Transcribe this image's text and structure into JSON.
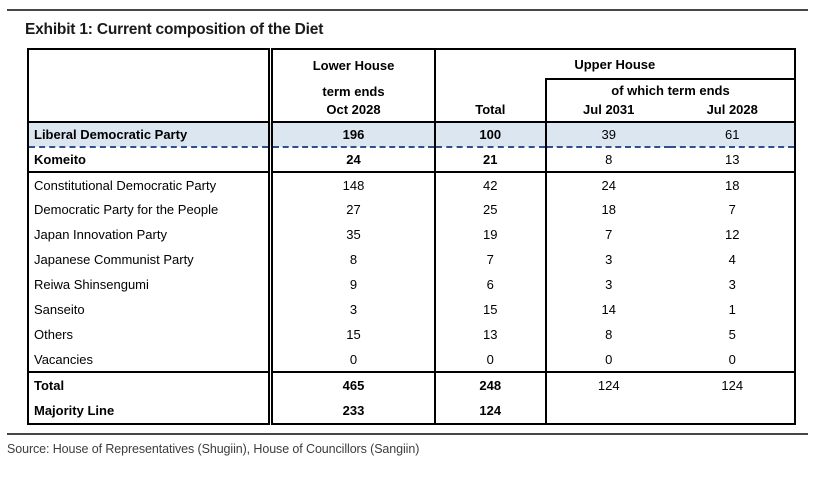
{
  "title": "Exhibit 1: Current composition of the Diet",
  "source": "Source: House of Representatives (Shugiin), House of Councillors (Sangiin)",
  "colors": {
    "highlight_row": "#dce6f1",
    "dashed_separator": "#31518c",
    "border": "#000000"
  },
  "table": {
    "header": {
      "lower_house": "Lower House",
      "lower_term": "term ends",
      "lower_date": "Oct 2028",
      "upper_house": "Upper House",
      "of_which": "of which term ends",
      "total": "Total",
      "jul2031": "Jul 2031",
      "jul2028": "Jul 2028"
    },
    "rows": [
      {
        "label": "Liberal Democratic Party",
        "values": [
          "196",
          "100",
          "39",
          "61"
        ],
        "bold": true,
        "bold_values": 2,
        "highlight": true,
        "separator": "dashed"
      },
      {
        "label": "Komeito",
        "values": [
          "24",
          "21",
          "8",
          "13"
        ],
        "bold": true,
        "bold_values": 2,
        "separator": "thick"
      },
      {
        "label": "Constitutional Democratic Party",
        "values": [
          "148",
          "42",
          "24",
          "18"
        ]
      },
      {
        "label": "Democratic Party for the People",
        "values": [
          "27",
          "25",
          "18",
          "7"
        ]
      },
      {
        "label": "Japan Innovation Party",
        "values": [
          "35",
          "19",
          "7",
          "12"
        ]
      },
      {
        "label": "Japanese Communist Party",
        "values": [
          "8",
          "7",
          "3",
          "4"
        ]
      },
      {
        "label": "Reiwa Shinsengumi",
        "values": [
          "9",
          "6",
          "3",
          "3"
        ]
      },
      {
        "label": "Sanseito",
        "values": [
          "3",
          "15",
          "14",
          "1"
        ]
      },
      {
        "label": "Others",
        "values": [
          "15",
          "13",
          "8",
          "5"
        ]
      },
      {
        "label": "Vacancies",
        "values": [
          "0",
          "0",
          "0",
          "0"
        ],
        "separator": "thick"
      },
      {
        "label": "Total",
        "values": [
          "465",
          "248",
          "124",
          "124"
        ],
        "bold": true,
        "bold_values": 2,
        "totals": true
      },
      {
        "label": "Majority Line",
        "values": [
          "233",
          "124",
          "",
          ""
        ],
        "bold": true,
        "bold_values": 2,
        "totals": true
      }
    ]
  }
}
